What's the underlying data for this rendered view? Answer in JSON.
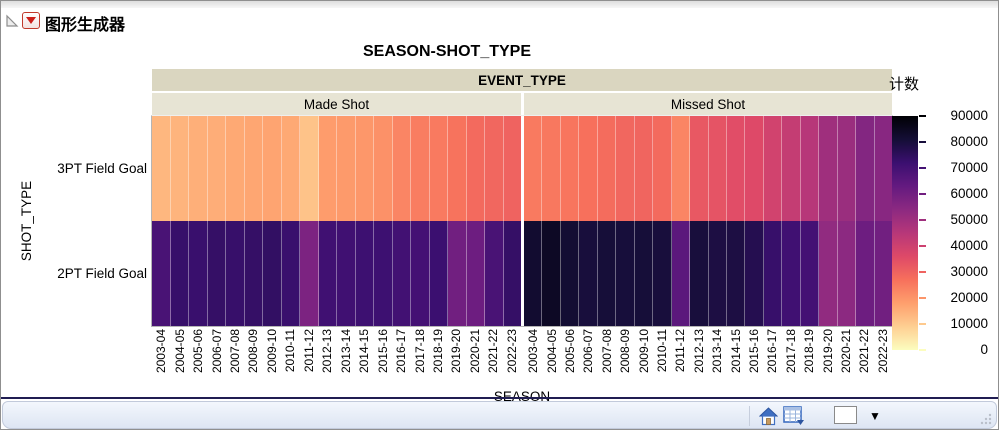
{
  "header": {
    "title": "图形生成器"
  },
  "chart_data": {
    "type": "heatmap",
    "title": "SEASON-SHOT_TYPE",
    "facet_label": "EVENT_TYPE",
    "facets": [
      "Made Shot",
      "Missed Shot"
    ],
    "xlabel": "SEASON",
    "ylabel": "SHOT_TYPE",
    "x": [
      "2003-04",
      "2004-05",
      "2005-06",
      "2006-07",
      "2007-08",
      "2008-09",
      "2009-10",
      "2010-11",
      "2011-12",
      "2012-13",
      "2013-14",
      "2014-15",
      "2015-16",
      "2016-17",
      "2017-18",
      "2018-19",
      "2019-20",
      "2020-21",
      "2021-22",
      "2022-23"
    ],
    "rows": [
      "3PT Field Goal",
      "2PT Field Goal"
    ],
    "legend": {
      "title": "计数",
      "min": 0,
      "max": 90000,
      "ticks": [
        90000,
        80000,
        70000,
        60000,
        50000,
        40000,
        30000,
        20000,
        10000,
        0
      ],
      "position": "right"
    },
    "colormap": {
      "name": "magma-reversed-high-dark",
      "stops": [
        {
          "t": 0.0,
          "color": "#000004"
        },
        {
          "t": 0.1,
          "color": "#140e36"
        },
        {
          "t": 0.2,
          "color": "#3b0f70"
        },
        {
          "t": 0.3,
          "color": "#641a80"
        },
        {
          "t": 0.4,
          "color": "#8c2981"
        },
        {
          "t": 0.5,
          "color": "#b73779"
        },
        {
          "t": 0.6,
          "color": "#de4968"
        },
        {
          "t": 0.7,
          "color": "#f7705c"
        },
        {
          "t": 0.8,
          "color": "#fe9f6d"
        },
        {
          "t": 0.9,
          "color": "#fecf92"
        },
        {
          "t": 1.0,
          "color": "#fcfdbf"
        }
      ]
    },
    "series": [
      {
        "facet": "Made Shot",
        "row": "3PT Field Goal",
        "values": [
          13500,
          14000,
          15000,
          15300,
          16200,
          16700,
          17000,
          16200,
          11300,
          18500,
          19000,
          19500,
          20700,
          23000,
          24500,
          25000,
          26500,
          28500,
          29000,
          30000
        ]
      },
      {
        "facet": "Made Shot",
        "row": "2PT Field Goal",
        "values": [
          69000,
          73000,
          72500,
          73500,
          73000,
          73500,
          74000,
          72500,
          57500,
          71000,
          71000,
          71500,
          71500,
          70500,
          70000,
          72000,
          60000,
          61000,
          69000,
          73500
        ]
      },
      {
        "facet": "Missed Shot",
        "row": "3PT Field Goal",
        "values": [
          25000,
          25500,
          26000,
          27000,
          28000,
          29000,
          29500,
          28500,
          23000,
          32500,
          33500,
          35000,
          36000,
          39000,
          42000,
          45000,
          50000,
          51000,
          56000,
          55000
        ]
      },
      {
        "facet": "Missed Shot",
        "row": "2PT Field Goal",
        "values": [
          82000,
          84000,
          81500,
          80000,
          80500,
          80300,
          80500,
          80000,
          65000,
          80000,
          79000,
          79000,
          77000,
          73000,
          71000,
          70000,
          53000,
          54000,
          61000,
          60000
        ]
      }
    ]
  },
  "footer": {
    "dropdown_glyph": "▼"
  }
}
